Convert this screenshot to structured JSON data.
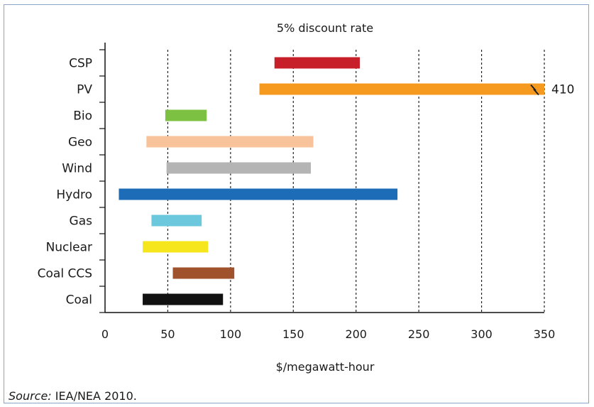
{
  "chart_data": {
    "type": "bar",
    "orientation": "horizontal-range",
    "title": "5% discount rate",
    "xlabel": "$/megawatt-hour",
    "ylabel": "",
    "xlim": [
      0,
      350
    ],
    "xticks": [
      "0",
      "50",
      "100",
      "150",
      "200",
      "250",
      "300",
      "350"
    ],
    "grid": "vertical dashed",
    "categories": [
      "CSP",
      "PV",
      "Bio",
      "Geo",
      "Wind",
      "Hydro",
      "Gas",
      "Nuclear",
      "Coal CCS",
      "Coal"
    ],
    "ranges": [
      {
        "category": "CSP",
        "min": 135,
        "max": 203,
        "color": "#c8202a"
      },
      {
        "category": "PV",
        "min": 123,
        "max": 410,
        "color": "#f59a1e",
        "break_label": "410"
      },
      {
        "category": "Bio",
        "min": 48,
        "max": 81,
        "color": "#7dc142"
      },
      {
        "category": "Geo",
        "min": 33,
        "max": 166,
        "color": "#f8c39a"
      },
      {
        "category": "Wind",
        "min": 49,
        "max": 164,
        "color": "#b4b4b4"
      },
      {
        "category": "Hydro",
        "min": 11,
        "max": 233,
        "color": "#1c6cb8"
      },
      {
        "category": "Gas",
        "min": 37,
        "max": 77,
        "color": "#6cc8dc"
      },
      {
        "category": "Nuclear",
        "min": 30,
        "max": 82,
        "color": "#f5e61e"
      },
      {
        "category": "Coal CCS",
        "min": 54,
        "max": 103,
        "color": "#a0522d"
      },
      {
        "category": "Coal",
        "min": 30,
        "max": 94,
        "color": "#111111"
      }
    ]
  },
  "source": {
    "label": "Source:",
    "text": "IEA/NEA 2010."
  }
}
